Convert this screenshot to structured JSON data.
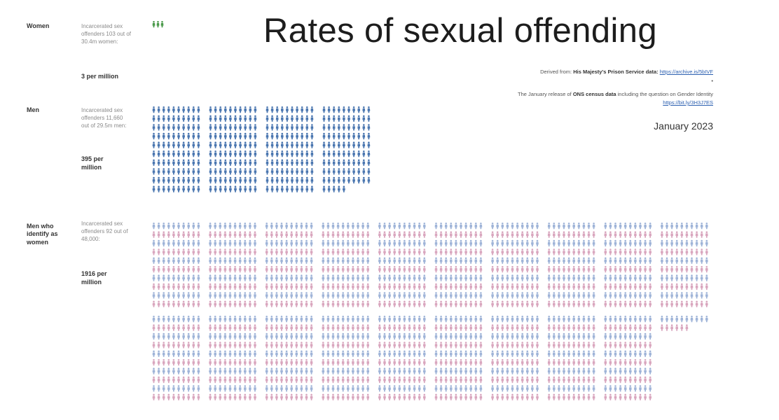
{
  "title": "Rates of sexual offending",
  "source": {
    "derived_prefix": "Derived from:",
    "prison_label": "His Majesty's Prison Service data:",
    "prison_link": "https://archive.is/5bIVF",
    "dot": "•",
    "ons_prefix": "The January release of",
    "ons_bold": "ONS census data",
    "ons_suffix": "including the question on Gender Identity",
    "ons_link": "https://bit.ly/3H3J7ES"
  },
  "date": "January 2023",
  "groups": {
    "women": {
      "label": "Women",
      "desc": "Incarcerated sex offenders 103 out of 30.4m women:",
      "rate": "3 per million"
    },
    "men": {
      "label": "Men",
      "desc": "Incarcerated sex offenders 11,660 out of 29.5m men:",
      "rate": "395 per million"
    },
    "transwomen": {
      "label": "Men who identify as women",
      "desc": "Incarcerated sex offenders 92 out of 48,000:",
      "rate": "1916 per million"
    }
  },
  "chart_data": {
    "type": "pictogram",
    "unit": "1 figure = 1 per million",
    "series": [
      {
        "name": "Women",
        "value": 3,
        "color": "#4a9a4a"
      },
      {
        "name": "Men",
        "value": 395,
        "color": "#4a76b0"
      },
      {
        "name": "Men who identify as women",
        "value": 1916,
        "colors": [
          "#9fb4d8",
          "#d9a6be"
        ]
      }
    ]
  }
}
